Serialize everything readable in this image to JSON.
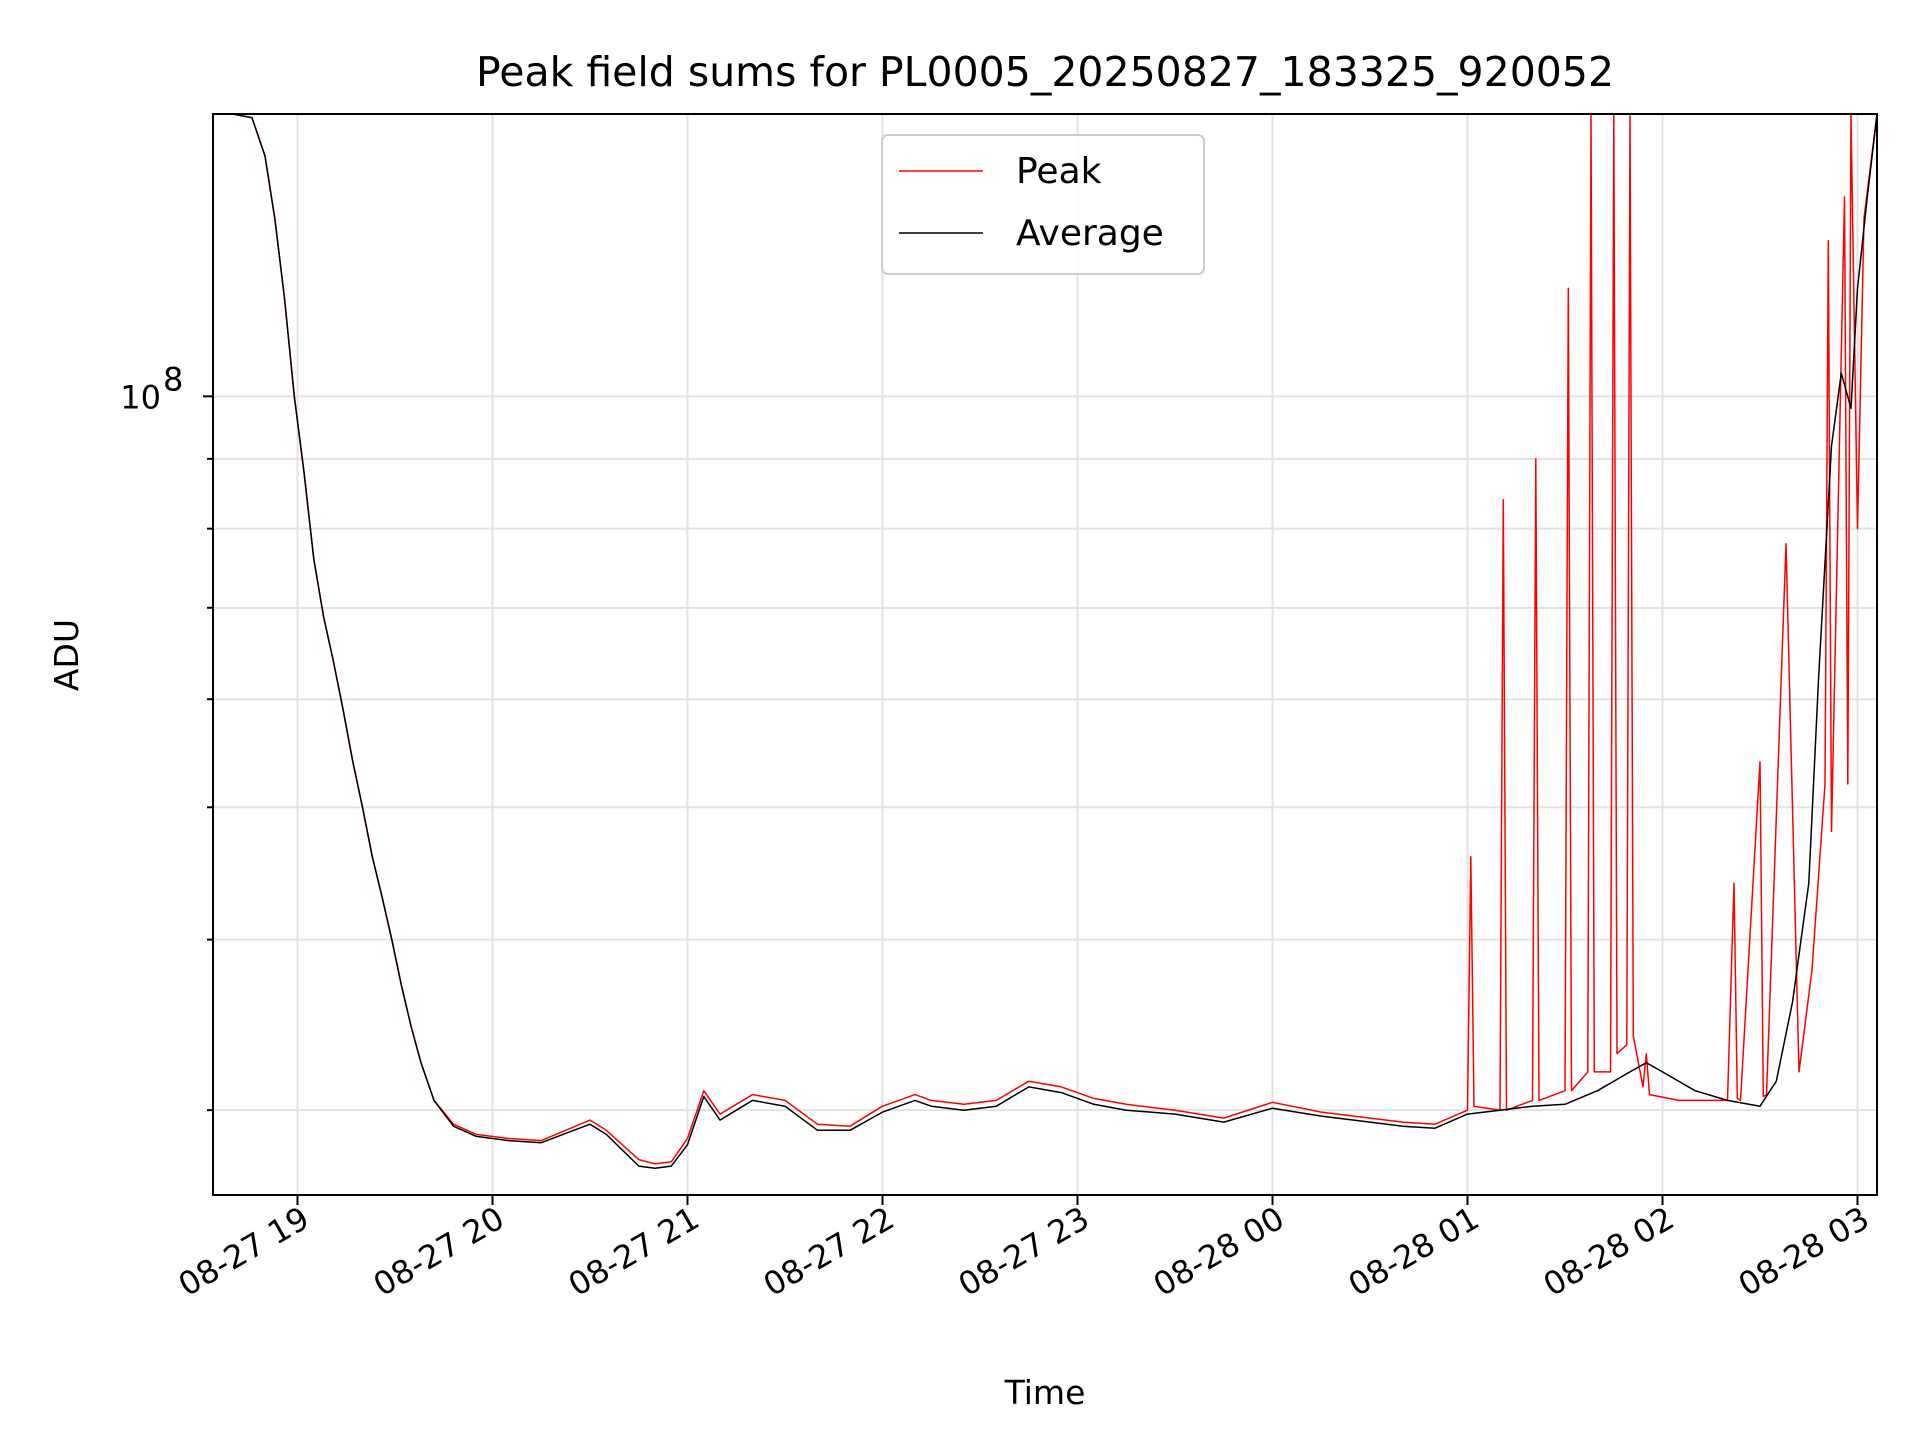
{
  "chart_data": {
    "type": "line",
    "title": "Peak field sums for PL0005_20250827_183325_920052",
    "xlabel": "Time",
    "ylabel": "ADU",
    "y_scale": "log",
    "ylim": [
      26000000,
      161000000
    ],
    "xlim": [
      "08-27 18:34",
      "08-28 03:06"
    ],
    "grid": true,
    "legend_position": "top-center",
    "x_tick_labels": [
      "08-27 19",
      "08-27 20",
      "08-27 21",
      "08-27 22",
      "08-27 23",
      "08-28 00",
      "08-28 01",
      "08-28 02",
      "08-28 03"
    ],
    "y_tick_labels": [
      {
        "value": 100000000,
        "base": "10",
        "exp": "8"
      }
    ],
    "series": [
      {
        "name": "Peak",
        "color": "#ff0000",
        "x": [
          "08-27 18:34",
          "08-27 18:40",
          "08-27 18:46",
          "08-27 18:50",
          "08-27 18:53",
          "08-27 18:56",
          "08-27 18:59",
          "08-27 19:02",
          "08-27 19:05",
          "08-27 19:08",
          "08-27 19:11",
          "08-27 19:14",
          "08-27 19:17",
          "08-27 19:20",
          "08-27 19:23",
          "08-27 19:26",
          "08-27 19:29",
          "08-27 19:32",
          "08-27 19:35",
          "08-27 19:38",
          "08-27 19:42",
          "08-27 19:48",
          "08-27 19:55",
          "08-27 20:05",
          "08-27 20:15",
          "08-27 20:30",
          "08-27 20:35",
          "08-27 20:45",
          "08-27 20:50",
          "08-27 20:55",
          "08-27 21:00",
          "08-27 21:05",
          "08-27 21:10",
          "08-27 21:15",
          "08-27 21:20",
          "08-27 21:30",
          "08-27 21:40",
          "08-27 21:50",
          "08-27 22:00",
          "08-27 22:10",
          "08-27 22:15",
          "08-27 22:25",
          "08-27 22:35",
          "08-27 22:45",
          "08-27 22:55",
          "08-27 23:05",
          "08-27 23:15",
          "08-27 23:30",
          "08-27 23:45",
          "08-28 00:00",
          "08-28 00:15",
          "08-28 00:30",
          "08-28 00:40",
          "08-28 00:50",
          "08-28 01:00",
          "08-28 01:01",
          "08-28 01:02",
          "08-28 01:10",
          "08-28 01:11",
          "08-28 01:12",
          "08-28 01:20",
          "08-28 01:21",
          "08-28 01:22",
          "08-28 01:30",
          "08-28 01:31",
          "08-28 01:32",
          "08-28 01:37",
          "08-28 01:38",
          "08-28 01:39",
          "08-28 01:44",
          "08-28 01:45",
          "08-28 01:46",
          "08-28 01:49",
          "08-28 01:50",
          "08-28 01:51",
          "08-28 01:54",
          "08-28 01:55",
          "08-28 01:56",
          "08-28 02:05",
          "08-28 02:20",
          "08-28 02:22",
          "08-28 02:23",
          "08-28 02:24",
          "08-28 02:30",
          "08-28 02:31",
          "08-28 02:32",
          "08-28 02:38",
          "08-28 02:42",
          "08-28 02:46",
          "08-28 02:50",
          "08-28 02:51",
          "08-28 02:52",
          "08-28 02:56",
          "08-28 02:57",
          "08-28 02:58",
          "08-28 03:00",
          "08-28 03:02",
          "08-28 03:06"
        ],
        "y": [
          161000000,
          161000000,
          160000000,
          150000000,
          135000000,
          118000000,
          100000000,
          88000000,
          76000000,
          69000000,
          64000000,
          59000000,
          54000000,
          50000000,
          46000000,
          43000000,
          40000000,
          37000000,
          34500000,
          32500000,
          30500000,
          29300000,
          28800000,
          28600000,
          28500000,
          29500000,
          29000000,
          27600000,
          27400000,
          27500000,
          28600000,
          31000000,
          29800000,
          30300000,
          30800000,
          30500000,
          29300000,
          29200000,
          30200000,
          30800000,
          30500000,
          30300000,
          30500000,
          31500000,
          31200000,
          30600000,
          30300000,
          30000000,
          29600000,
          30400000,
          29900000,
          29600000,
          29400000,
          29300000,
          30000000,
          46000000,
          30200000,
          30000000,
          84000000,
          30000000,
          30500000,
          90000000,
          30500000,
          31000000,
          120000000,
          31000000,
          32000000,
          161000000,
          32000000,
          32000000,
          161000000,
          33000000,
          33500000,
          161000000,
          34000000,
          31200000,
          33000000,
          30800000,
          30500000,
          30500000,
          44000000,
          30600000,
          30500000,
          54000000,
          30700000,
          30800000,
          78000000,
          32000000,
          38000000,
          52000000,
          130000000,
          48000000,
          140000000,
          52000000,
          161000000,
          80000000,
          135000000,
          161000000
        ]
      },
      {
        "name": "Average",
        "color": "#000000",
        "x": [
          "08-27 18:34",
          "08-27 18:40",
          "08-27 18:46",
          "08-27 18:50",
          "08-27 18:53",
          "08-27 18:56",
          "08-27 18:59",
          "08-27 19:02",
          "08-27 19:05",
          "08-27 19:08",
          "08-27 19:11",
          "08-27 19:14",
          "08-27 19:17",
          "08-27 19:20",
          "08-27 19:23",
          "08-27 19:26",
          "08-27 19:29",
          "08-27 19:32",
          "08-27 19:35",
          "08-27 19:38",
          "08-27 19:42",
          "08-27 19:48",
          "08-27 19:55",
          "08-27 20:05",
          "08-27 20:15",
          "08-27 20:30",
          "08-27 20:35",
          "08-27 20:45",
          "08-27 20:50",
          "08-27 20:55",
          "08-27 21:00",
          "08-27 21:05",
          "08-27 21:10",
          "08-27 21:15",
          "08-27 21:20",
          "08-27 21:30",
          "08-27 21:40",
          "08-27 21:50",
          "08-27 22:00",
          "08-27 22:10",
          "08-27 22:15",
          "08-27 22:25",
          "08-27 22:35",
          "08-27 22:45",
          "08-27 22:55",
          "08-27 23:05",
          "08-27 23:15",
          "08-27 23:30",
          "08-27 23:45",
          "08-28 00:00",
          "08-28 00:15",
          "08-28 00:30",
          "08-28 00:40",
          "08-28 00:50",
          "08-28 01:00",
          "08-28 01:10",
          "08-28 01:20",
          "08-28 01:30",
          "08-28 01:40",
          "08-28 01:50",
          "08-28 01:55",
          "08-28 02:00",
          "08-28 02:10",
          "08-28 02:20",
          "08-28 02:30",
          "08-28 02:35",
          "08-28 02:40",
          "08-28 02:45",
          "08-28 02:48",
          "08-28 02:52",
          "08-28 02:55",
          "08-28 02:58",
          "08-28 03:00",
          "08-28 03:03",
          "08-28 03:06"
        ],
        "y": [
          161000000,
          161000000,
          160000000,
          150000000,
          135000000,
          118000000,
          100000000,
          88000000,
          76000000,
          69000000,
          64000000,
          59000000,
          54000000,
          50000000,
          46000000,
          43000000,
          40000000,
          37000000,
          34500000,
          32500000,
          30500000,
          29200000,
          28700000,
          28500000,
          28400000,
          29300000,
          28800000,
          27300000,
          27200000,
          27300000,
          28300000,
          30700000,
          29500000,
          30000000,
          30500000,
          30200000,
          29000000,
          29000000,
          29900000,
          30500000,
          30200000,
          30000000,
          30200000,
          31200000,
          30900000,
          30300000,
          30000000,
          29800000,
          29400000,
          30100000,
          29700000,
          29400000,
          29200000,
          29100000,
          29800000,
          30000000,
          30200000,
          30300000,
          31000000,
          32000000,
          32500000,
          32000000,
          31000000,
          30500000,
          30200000,
          31500000,
          36000000,
          44000000,
          62000000,
          92000000,
          104000000,
          98000000,
          120000000,
          140000000,
          161000000
        ]
      }
    ]
  }
}
